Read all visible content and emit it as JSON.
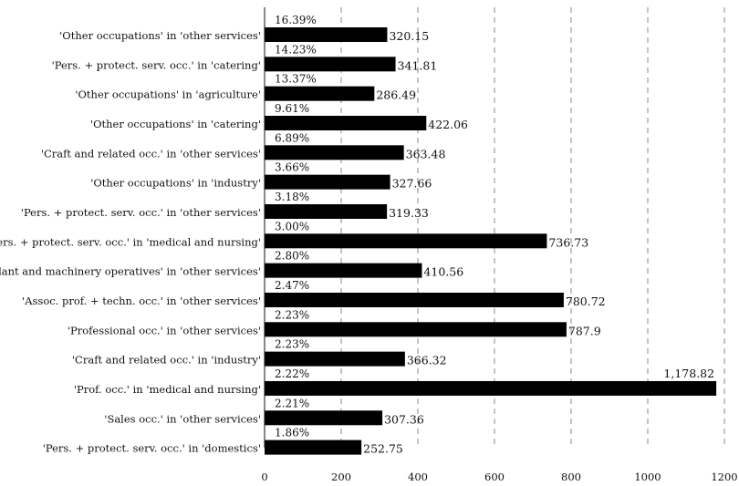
{
  "chart_data": {
    "type": "bar",
    "orientation": "horizontal",
    "title": "",
    "xlabel": "",
    "ylabel": "",
    "xlim": [
      0,
      1200
    ],
    "x_ticks": [
      0,
      200,
      400,
      600,
      800,
      1000,
      1200
    ],
    "grid": "vertical dashed",
    "categories": [
      "'Other occupations' in 'other services'",
      "'Pers. + protect. serv. occ.' in 'catering'",
      "'Other occupations' in 'agriculture'",
      "'Other occupations' in 'catering'",
      "'Craft and related occ.' in 'other services'",
      "'Other occupations' in 'industry'",
      "'Pers. + protect. serv. occ.' in 'other services'",
      "'Pers. + protect. serv. occ.' in 'medical and nursing'",
      "'Plant and machinery operatives' in 'other services'",
      "'Assoc. prof. + techn. occ.' in 'other services'",
      "'Professional occ.' in 'other services'",
      "'Craft and related occ.' in 'industry'",
      "'Prof. occ.' in 'medical and nursing'",
      "'Sales occ.' in 'other services'",
      "'Pers. + protect. serv. occ.' in 'domestics'"
    ],
    "values": [
      320.15,
      341.81,
      286.49,
      422.06,
      363.48,
      327.66,
      319.33,
      736.73,
      410.56,
      780.72,
      787.9,
      366.32,
      1178.82,
      307.36,
      252.75
    ],
    "value_labels": [
      "320.15",
      "341.81",
      "286.49",
      "422.06",
      "363.48",
      "327.66",
      "319.33",
      "736.73",
      "410.56",
      "780.72",
      "787.9",
      "366.32",
      "1,178.82",
      "307.36",
      "252.75"
    ],
    "percent_labels": [
      "16.39%",
      "14.23%",
      "13.37%",
      "9.61%",
      "6.89%",
      "3.66%",
      "3.18%",
      "3.00%",
      "2.80%",
      "2.47%",
      "2.23%",
      "2.23%",
      "2.22%",
      "2.21%",
      "1.86%"
    ]
  }
}
